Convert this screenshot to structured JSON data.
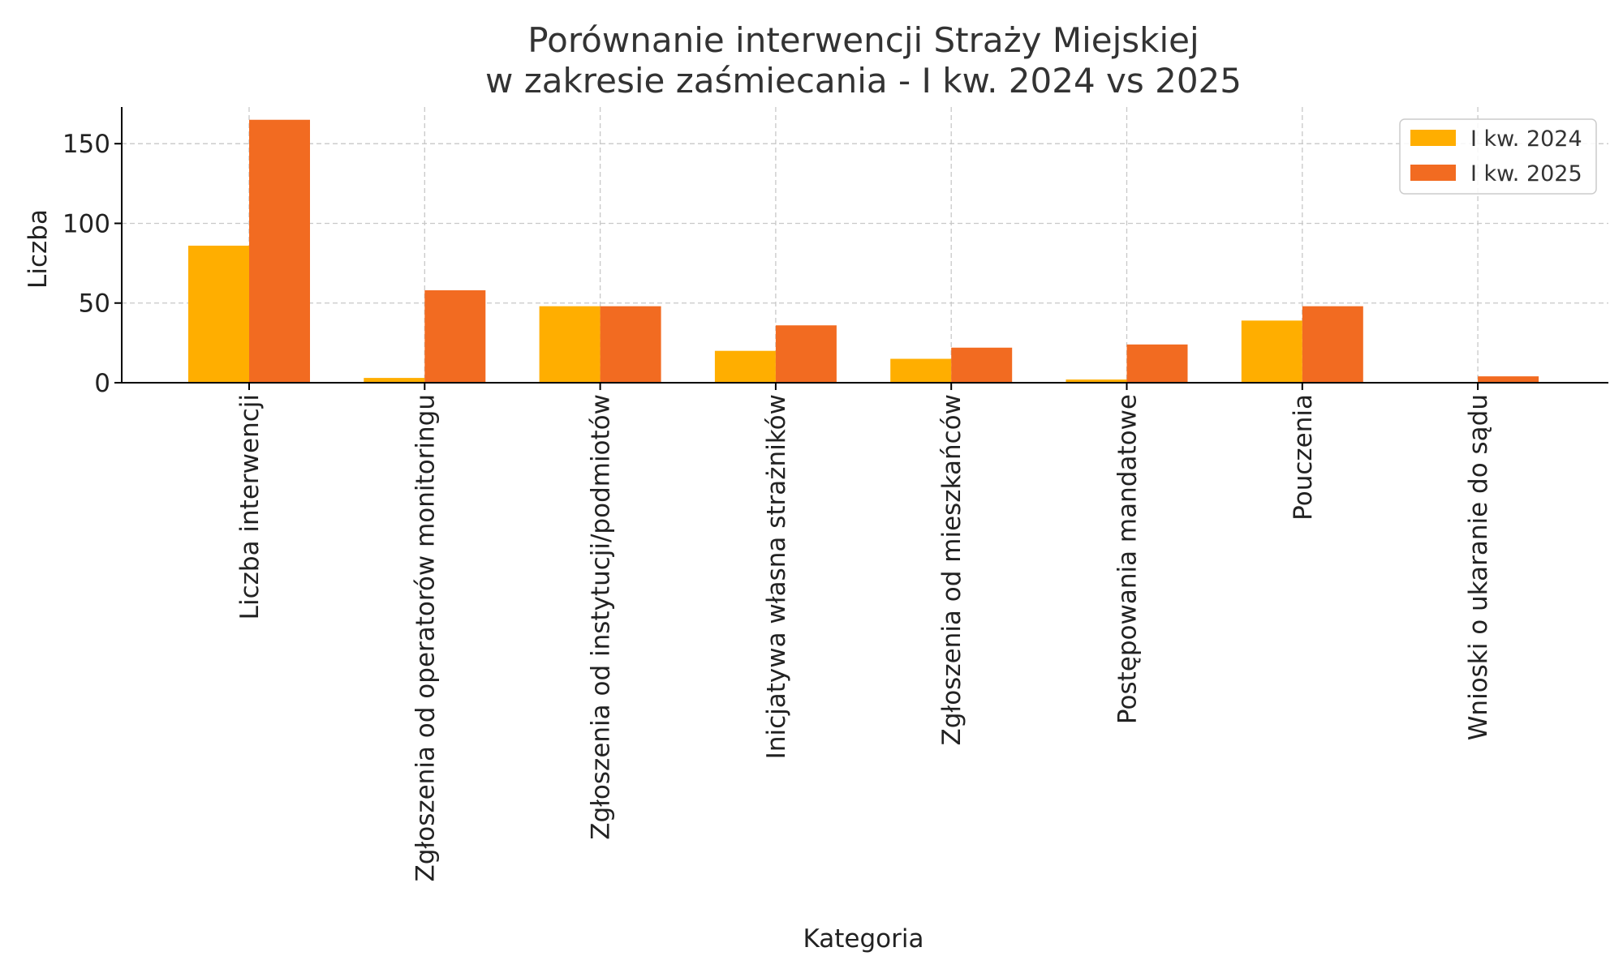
{
  "chart_data": {
    "type": "bar",
    "title_lines": [
      "Porównanie interwencji Straży Miejskiej",
      "w zakresie zaśmiecania - I kw. 2024 vs 2025"
    ],
    "xlabel": "Kategoria",
    "ylabel": "Liczba",
    "categories": [
      "Liczba interwencji",
      "Zgłoszenia od operatorów monitoringu",
      "Zgłoszenia od instytucji/podmiotów",
      "Inicjatywa własna strażników",
      "Zgłoszenia od mieszkańców",
      "Postępowania mandatowe",
      "Pouczenia",
      "Wnioski o ukaranie do sądu"
    ],
    "series": [
      {
        "name": "I kw. 2024",
        "color": "#FFAE00",
        "values": [
          86,
          3,
          48,
          20,
          15,
          2,
          39,
          0
        ]
      },
      {
        "name": "I kw. 2025",
        "color": "#F26B21",
        "values": [
          165,
          58,
          48,
          36,
          22,
          24,
          48,
          4
        ]
      }
    ],
    "yticks": [
      0,
      50,
      100,
      150
    ],
    "ylim": [
      0,
      173
    ],
    "grid": true,
    "legend_position": "top-right"
  }
}
